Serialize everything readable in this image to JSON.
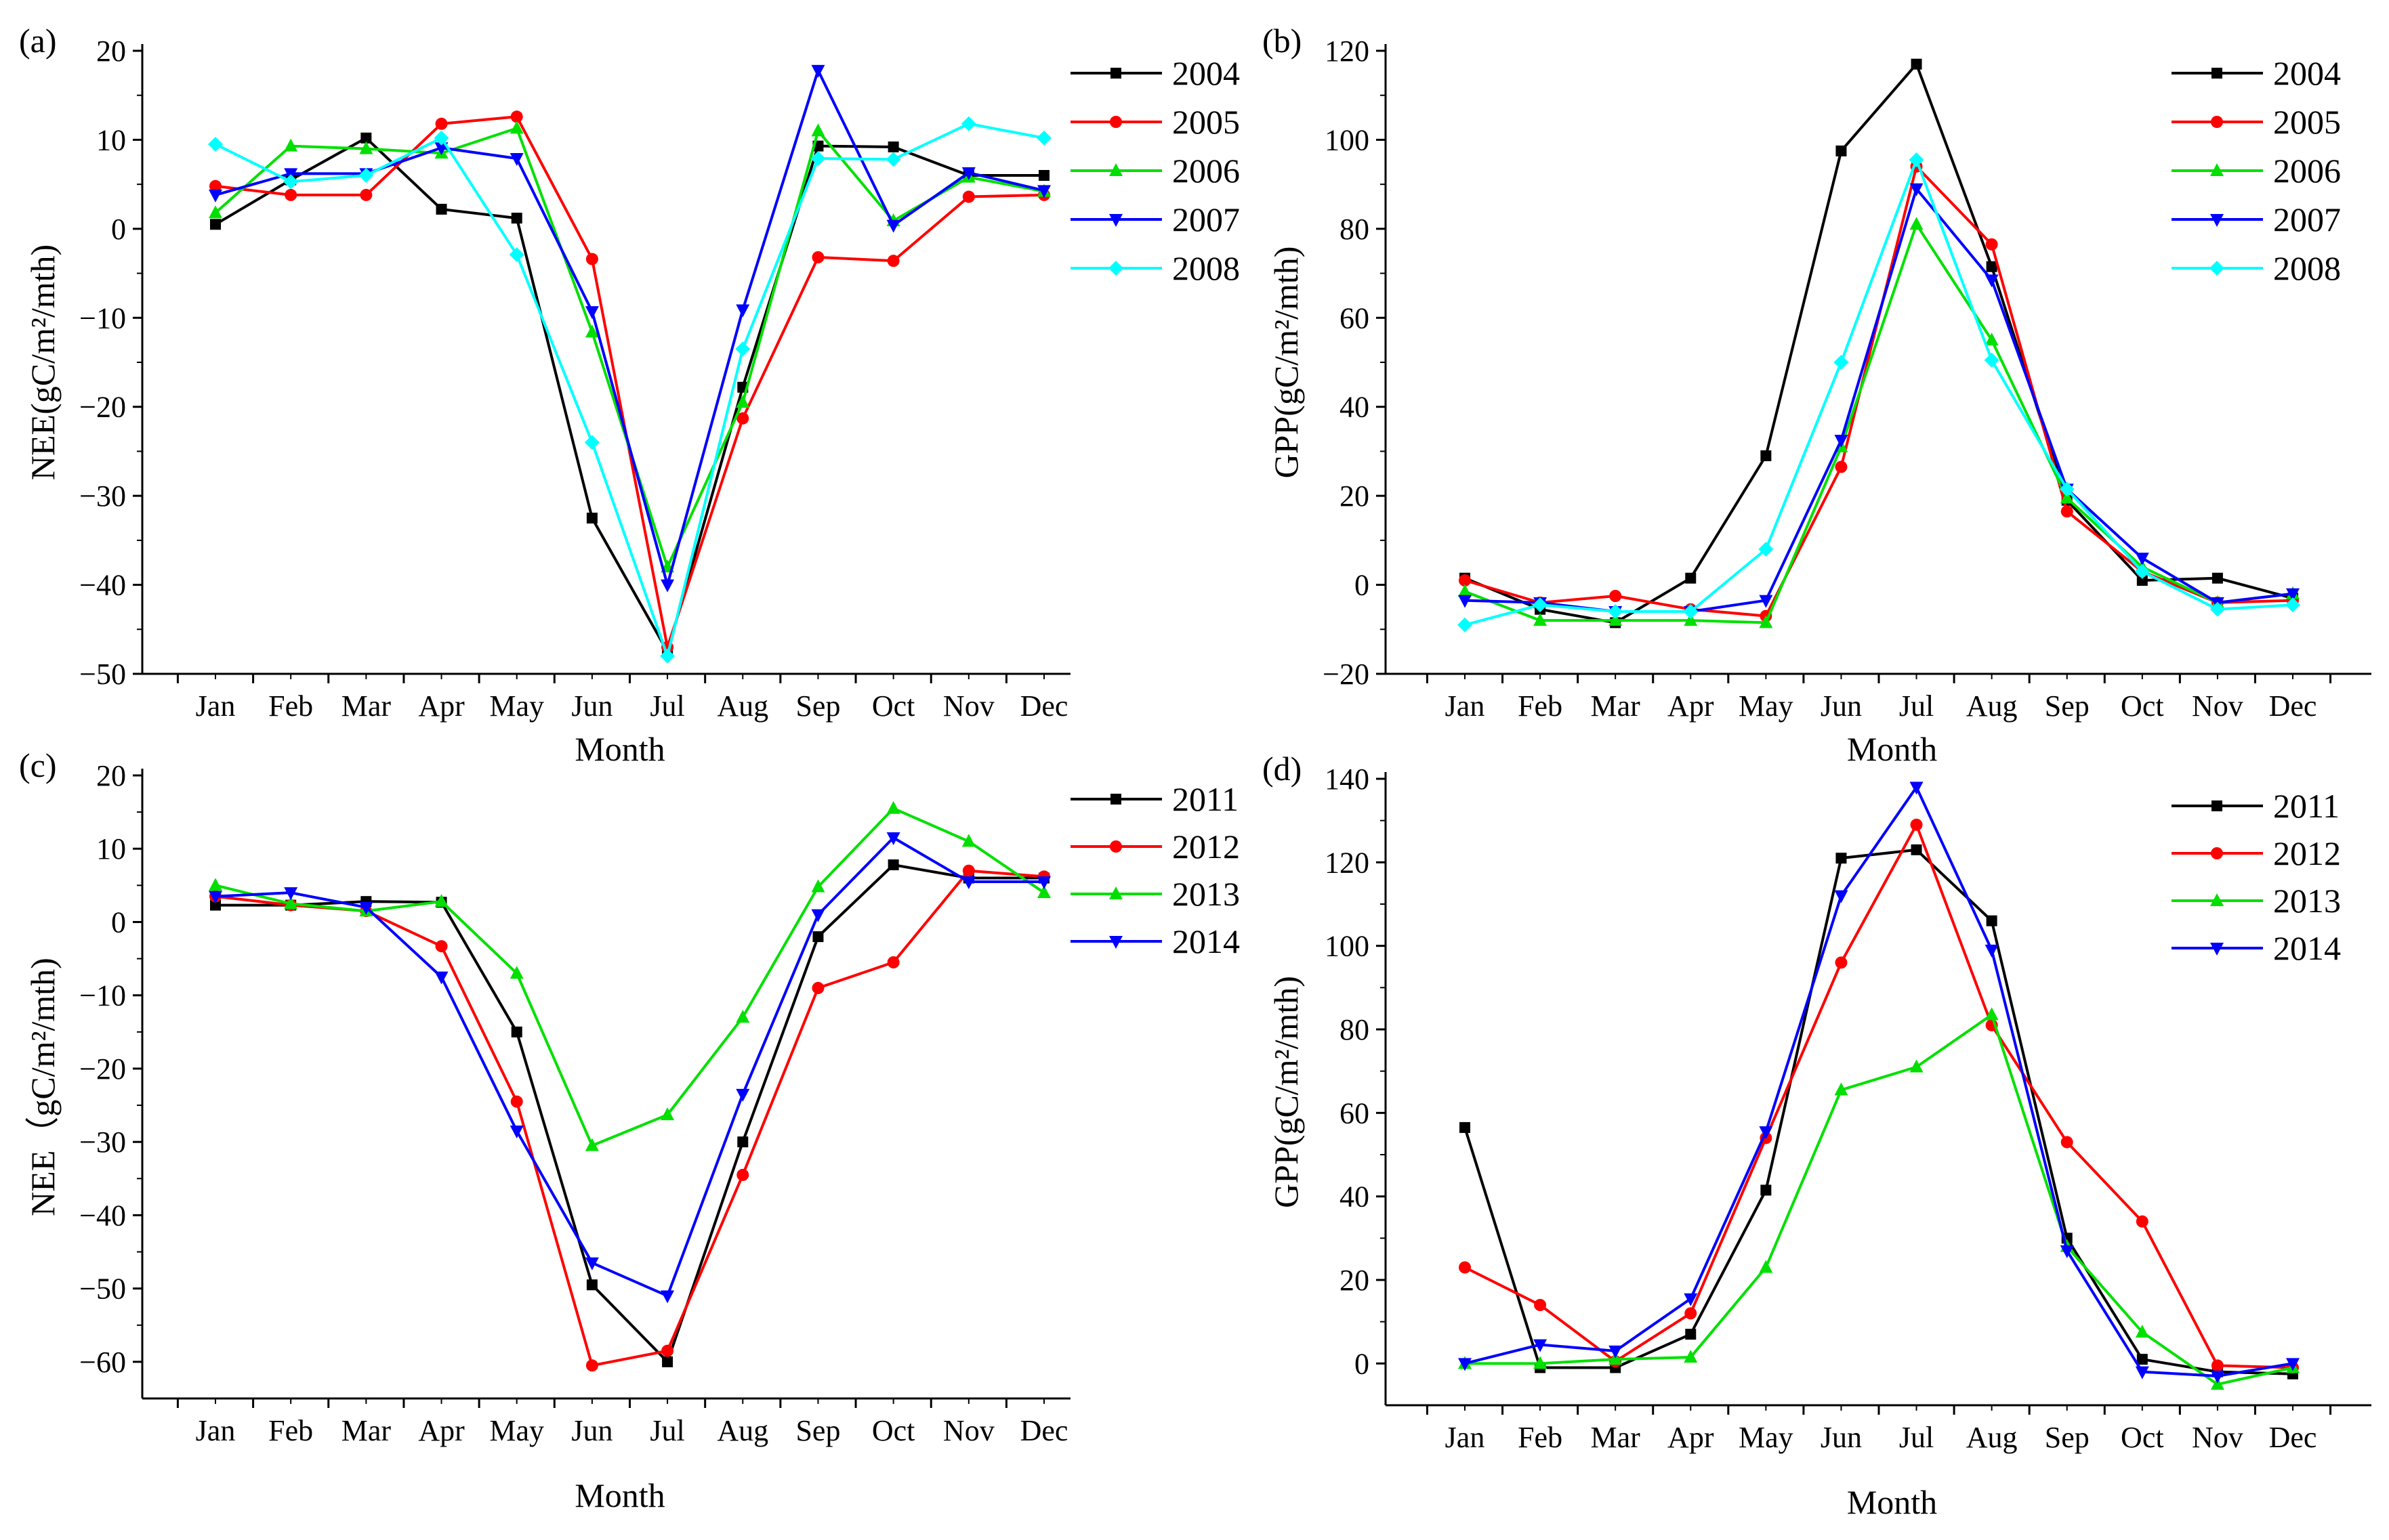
{
  "figure": {
    "months": [
      "Jan",
      "Feb",
      "Mar",
      "Apr",
      "May",
      "Jun",
      "Jul",
      "Aug",
      "Sep",
      "Oct",
      "Nov",
      "Dec"
    ],
    "xlabel": "Month"
  },
  "colors": {
    "black": "#000000",
    "red": "#ff0000",
    "green": "#00e000",
    "blue": "#0000ff",
    "cyan": "#00ffff"
  },
  "chart_data": [
    {
      "type": "line",
      "panel": "(a)",
      "ylabel": "NEE(gC/m²/mth)",
      "xlabel": "Month",
      "categories": [
        "Jan",
        "Feb",
        "Mar",
        "Apr",
        "May",
        "Jun",
        "Jul",
        "Aug",
        "Sep",
        "Oct",
        "Nov",
        "Dec"
      ],
      "ylim": [
        -50,
        20
      ],
      "yticks": [
        20,
        10,
        0,
        -10,
        -20,
        -30,
        -40,
        -50
      ],
      "ytick_labels": [
        "20",
        "10",
        "0",
        "−10",
        "−20",
        "−30",
        "−40",
        "−50"
      ],
      "series": [
        {
          "name": "2004",
          "color": "#000000",
          "marker": "square",
          "values": [
            0.5,
            5.5,
            10.2,
            2.2,
            1.2,
            -32.5,
            -47.5,
            -17.8,
            9.3,
            9.2,
            6.0,
            6.0
          ]
        },
        {
          "name": "2005",
          "color": "#ff0000",
          "marker": "circle",
          "values": [
            4.8,
            3.8,
            3.8,
            11.8,
            12.6,
            -3.4,
            -47.0,
            -21.3,
            -3.2,
            -3.6,
            3.6,
            3.8
          ]
        },
        {
          "name": "2006",
          "color": "#00e000",
          "marker": "triangle-up",
          "values": [
            1.8,
            9.3,
            9.0,
            8.5,
            11.3,
            -11.6,
            -38.0,
            -19.5,
            11.0,
            0.9,
            5.8,
            4.2
          ]
        },
        {
          "name": "2007",
          "color": "#0000ff",
          "marker": "triangle-down",
          "values": [
            3.8,
            6.2,
            6.2,
            9.1,
            7.9,
            -9.3,
            -40.0,
            -9.1,
            17.8,
            0.4,
            6.3,
            4.3
          ]
        },
        {
          "name": "2008",
          "color": "#00ffff",
          "marker": "diamond",
          "values": [
            9.5,
            5.3,
            6.0,
            10.2,
            -2.9,
            -24.0,
            -48.0,
            -13.5,
            7.9,
            7.8,
            11.8,
            10.2
          ]
        }
      ]
    },
    {
      "type": "line",
      "panel": "(b)",
      "ylabel": "GPP(gC/m²/mth)",
      "xlabel": "Month",
      "categories": [
        "Jan",
        "Feb",
        "Mar",
        "Apr",
        "May",
        "Jun",
        "Jul",
        "Aug",
        "Sep",
        "Oct",
        "Nov",
        "Dec"
      ],
      "ylim": [
        -20,
        120
      ],
      "yticks": [
        120,
        100,
        80,
        60,
        40,
        20,
        0,
        -20
      ],
      "ytick_labels": [
        "120",
        "100",
        "80",
        "60",
        "40",
        "20",
        "0",
        "−20"
      ],
      "series": [
        {
          "name": "2004",
          "color": "#000000",
          "marker": "square",
          "values": [
            1.5,
            -5.5,
            -8.5,
            1.5,
            29.0,
            97.5,
            117.0,
            71.5,
            19.0,
            1.0,
            1.5,
            -3.0
          ]
        },
        {
          "name": "2005",
          "color": "#ff0000",
          "marker": "circle",
          "values": [
            1.0,
            -4.0,
            -2.5,
            -5.5,
            -7.0,
            26.5,
            94.0,
            76.5,
            16.5,
            3.0,
            -4.0,
            -3.5
          ]
        },
        {
          "name": "2006",
          "color": "#00e000",
          "marker": "triangle-up",
          "values": [
            -1.5,
            -8.0,
            -8.0,
            -8.0,
            -8.5,
            31.0,
            81.0,
            55.0,
            19.5,
            4.0,
            -4.0,
            -2.0
          ]
        },
        {
          "name": "2007",
          "color": "#0000ff",
          "marker": "triangle-down",
          "values": [
            -3.5,
            -4.0,
            -6.0,
            -6.0,
            -3.5,
            32.5,
            89.0,
            68.5,
            21.5,
            6.0,
            -4.0,
            -2.0
          ]
        },
        {
          "name": "2008",
          "color": "#00ffff",
          "marker": "diamond",
          "values": [
            -9.0,
            -4.5,
            -6.0,
            -6.0,
            8.0,
            50.0,
            95.5,
            50.5,
            21.5,
            3.0,
            -5.5,
            -4.5
          ]
        }
      ]
    },
    {
      "type": "line",
      "panel": "(c)",
      "ylabel": "NEE（gC/m²/mth)",
      "xlabel": "Month",
      "categories": [
        "Jan",
        "Feb",
        "Mar",
        "Apr",
        "May",
        "Jun",
        "Jul",
        "Aug",
        "Sep",
        "Oct",
        "Nov",
        "Dec"
      ],
      "ylim": [
        -65,
        20
      ],
      "yticks": [
        20,
        10,
        0,
        -10,
        -20,
        -30,
        -40,
        -50,
        -60
      ],
      "ytick_labels": [
        "20",
        "10",
        "0",
        "−10",
        "−20",
        "−30",
        "−40",
        "−50",
        "−60"
      ],
      "series": [
        {
          "name": "2011",
          "color": "#000000",
          "marker": "square",
          "values": [
            2.3,
            2.3,
            2.8,
            2.7,
            -15.0,
            -49.5,
            -60.0,
            -30.0,
            -2.0,
            7.8,
            6.0,
            6.0
          ]
        },
        {
          "name": "2012",
          "color": "#ff0000",
          "marker": "circle",
          "values": [
            3.5,
            2.3,
            1.5,
            -3.3,
            -24.5,
            -60.5,
            -58.5,
            -34.5,
            -9.0,
            -5.5,
            7.0,
            6.2
          ]
        },
        {
          "name": "2013",
          "color": "#00e000",
          "marker": "triangle-up",
          "values": [
            5.0,
            2.5,
            1.5,
            2.8,
            -7.0,
            -30.5,
            -26.3,
            -13.0,
            4.8,
            15.5,
            11.0,
            4.0
          ]
        },
        {
          "name": "2014",
          "color": "#0000ff",
          "marker": "triangle-down",
          "values": [
            3.5,
            4.0,
            2.0,
            -7.5,
            -28.5,
            -46.5,
            -51.0,
            -23.5,
            1.0,
            11.5,
            5.5,
            5.5
          ]
        }
      ]
    },
    {
      "type": "line",
      "panel": "(d)",
      "ylabel": "GPP(gC/m²/mth)",
      "xlabel": "Month",
      "categories": [
        "Jan",
        "Feb",
        "Mar",
        "Apr",
        "May",
        "Jun",
        "Jul",
        "Aug",
        "Sep",
        "Oct",
        "Nov",
        "Dec"
      ],
      "ylim": [
        -10,
        140
      ],
      "yticks": [
        140,
        120,
        100,
        80,
        60,
        40,
        20,
        0
      ],
      "ytick_labels": [
        "140",
        "120",
        "100",
        "80",
        "60",
        "40",
        "20",
        "0"
      ],
      "series": [
        {
          "name": "2011",
          "color": "#000000",
          "marker": "square",
          "values": [
            56.5,
            -1.0,
            -1.0,
            7.0,
            41.5,
            121.0,
            123.0,
            106.0,
            30.0,
            1.0,
            -2.0,
            -2.5
          ]
        },
        {
          "name": "2012",
          "color": "#ff0000",
          "marker": "circle",
          "values": [
            23.0,
            14.0,
            0.5,
            12.0,
            54.0,
            96.0,
            129.0,
            81.0,
            53.0,
            34.0,
            -0.5,
            -1.0
          ]
        },
        {
          "name": "2013",
          "color": "#00e000",
          "marker": "triangle-up",
          "values": [
            0.0,
            0.0,
            1.0,
            1.5,
            23.0,
            65.5,
            71.0,
            83.5,
            28.0,
            7.5,
            -5.0,
            -1.0
          ]
        },
        {
          "name": "2014",
          "color": "#0000ff",
          "marker": "triangle-down",
          "values": [
            0.0,
            4.5,
            3.0,
            15.5,
            55.5,
            112.0,
            138.0,
            99.0,
            27.0,
            -2.0,
            -3.0,
            0.0
          ]
        }
      ]
    }
  ]
}
